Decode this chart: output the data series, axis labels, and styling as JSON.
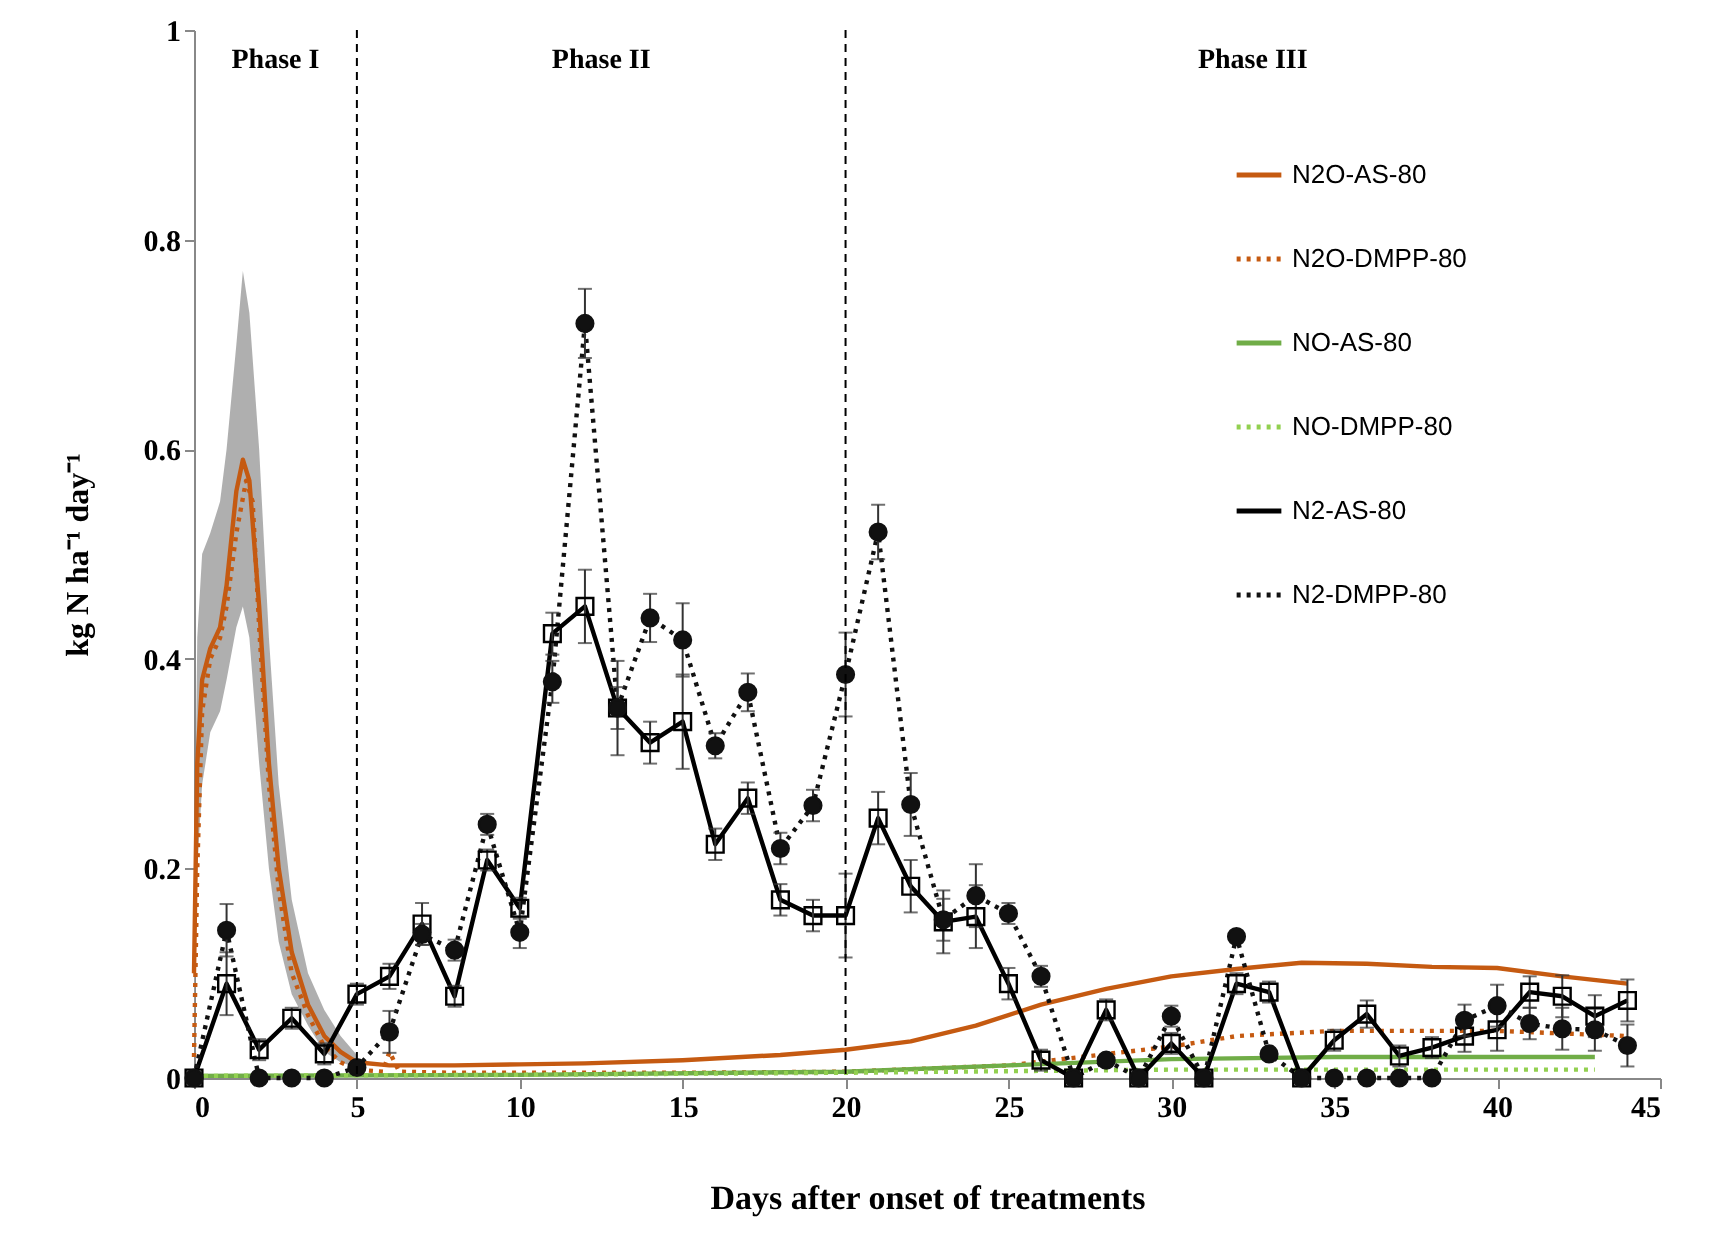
{
  "chart_data": {
    "type": "line",
    "xlabel": "Days after onset of treatments",
    "ylabel": "kg N ha⁻¹ day⁻¹",
    "xlim": [
      0,
      45
    ],
    "xticks": [
      0,
      5,
      10,
      15,
      20,
      25,
      30,
      35,
      40,
      45
    ],
    "ylim": [
      0,
      1
    ],
    "yticks": [
      0,
      0.2,
      0.4,
      0.6,
      0.8,
      1
    ],
    "grid": false,
    "legend": "top right",
    "ref_lines": [
      {
        "axis": "x",
        "value": 5,
        "line_style": "dashed",
        "color": "#000000"
      },
      {
        "axis": "x",
        "value": 20,
        "line_style": "dashed",
        "color": "#000000"
      }
    ],
    "annotations": [
      "Phase I",
      "Phase II",
      "Phase III"
    ],
    "series": [
      {
        "name": "N2O-AS-80",
        "color": "#c55a11",
        "line_style": "solid",
        "marker": "none",
        "x": [
          0,
          0.1,
          0.25,
          0.5,
          0.8,
          1.0,
          1.3,
          1.5,
          1.7,
          2.0,
          2.3,
          2.6,
          3.0,
          3.5,
          4,
          4.5,
          5,
          6,
          8,
          10,
          12,
          15,
          18,
          20,
          22,
          24,
          26,
          28,
          30,
          32,
          34,
          36,
          38,
          40,
          42,
          44
        ],
        "values": [
          0.1,
          0.3,
          0.38,
          0.41,
          0.43,
          0.47,
          0.56,
          0.59,
          0.57,
          0.45,
          0.3,
          0.2,
          0.12,
          0.07,
          0.04,
          0.025,
          0.015,
          0.012,
          0.012,
          0.013,
          0.014,
          0.017,
          0.022,
          0.027,
          0.035,
          0.05,
          0.07,
          0.085,
          0.097,
          0.104,
          0.11,
          0.109,
          0.106,
          0.105,
          0.097,
          0.09
        ],
        "lower": [
          0.05,
          0.2,
          0.28,
          0.33,
          0.35,
          0.38,
          0.43,
          0.45,
          0.42,
          0.3,
          0.2,
          0.13,
          0.08,
          0.05,
          0.025,
          0.015,
          0.01,
          null,
          null,
          null,
          null,
          null,
          null,
          null,
          null,
          null,
          null,
          null,
          null,
          null,
          null,
          null,
          null,
          null,
          null,
          null
        ],
        "upper": [
          0.15,
          0.42,
          0.5,
          0.52,
          0.55,
          0.6,
          0.7,
          0.77,
          0.73,
          0.6,
          0.42,
          0.28,
          0.17,
          0.1,
          0.065,
          0.04,
          0.022,
          null,
          null,
          null,
          null,
          null,
          null,
          null,
          null,
          null,
          null,
          null,
          null,
          null,
          null,
          null,
          null,
          null,
          null,
          null
        ]
      },
      {
        "name": "N2O-DMPP-80",
        "color": "#c55a11",
        "line_style": "dotted",
        "marker": "none",
        "x": [
          0,
          0.1,
          0.25,
          0.5,
          0.8,
          1.0,
          1.3,
          1.6,
          1.8,
          2.0,
          2.3,
          2.6,
          3.0,
          3.5,
          4,
          4.5,
          5,
          5.8,
          6,
          6.3,
          8,
          10,
          15,
          20,
          25,
          30,
          32,
          35,
          40,
          44
        ],
        "values": [
          0.02,
          0.2,
          0.35,
          0.4,
          0.42,
          0.45,
          0.52,
          0.57,
          0.55,
          0.43,
          0.28,
          0.18,
          0.1,
          0.06,
          0.03,
          0.015,
          0.008,
          0.006,
          0.025,
          0.006,
          0.005,
          0.005,
          0.005,
          0.006,
          0.012,
          0.03,
          0.04,
          0.045,
          0.045,
          0.04
        ]
      },
      {
        "name": "NO-AS-80",
        "color": "#70ad47",
        "line_style": "solid",
        "marker": "none",
        "x": [
          0,
          10,
          20,
          25,
          30,
          35,
          43
        ],
        "values": [
          0.002,
          0.003,
          0.006,
          0.012,
          0.018,
          0.02,
          0.02
        ]
      },
      {
        "name": "NO-DMPP-80",
        "color": "#92d050",
        "line_style": "dotted",
        "marker": "none",
        "x": [
          0,
          10,
          20,
          30,
          43
        ],
        "values": [
          0.002,
          0.003,
          0.005,
          0.008,
          0.008
        ]
      },
      {
        "name": "N2-AS-80",
        "color": "#000000",
        "line_style": "solid",
        "marker": "square",
        "x": [
          0,
          1,
          2,
          3,
          4,
          5,
          6,
          7,
          8,
          9,
          10,
          11,
          12,
          13,
          14,
          15,
          16,
          17,
          18,
          19,
          20,
          21,
          22,
          23,
          24,
          25,
          26,
          27,
          28,
          29,
          30,
          31,
          32,
          33,
          34,
          35,
          36,
          37,
          38,
          39,
          40,
          41,
          42,
          43,
          44
        ],
        "values": [
          0,
          0.09,
          0.027,
          0.057,
          0.023,
          0.08,
          0.097,
          0.147,
          0.078,
          0.208,
          0.162,
          0.424,
          0.45,
          0.353,
          0.32,
          0.34,
          0.223,
          0.267,
          0.17,
          0.155,
          0.155,
          0.248,
          0.183,
          0.149,
          0.154,
          0.09,
          0.017,
          0,
          0.065,
          0,
          0.033,
          0,
          0.09,
          0.082,
          0,
          0.036,
          0.061,
          0.021,
          0.029,
          0.04,
          0.046,
          0.082,
          0.078,
          0.059,
          0.074
        ],
        "errors": [
          null,
          0.03,
          0.01,
          0.01,
          0.01,
          0.01,
          0.012,
          0.02,
          0.01,
          0.01,
          0.01,
          0.02,
          0.035,
          0.045,
          0.02,
          0.045,
          0.015,
          0.015,
          0.015,
          0.015,
          0.04,
          0.025,
          0.025,
          0.03,
          0.03,
          0.015,
          0.01,
          null,
          0.01,
          null,
          0.01,
          null,
          0.01,
          0.01,
          null,
          0.01,
          0.013,
          0.01,
          0.01,
          0.015,
          0.02,
          0.015,
          0.02,
          0.02,
          0.02
        ]
      },
      {
        "name": "N2-DMPP-80",
        "color": "#111111",
        "line_style": "dotted",
        "marker": "circle",
        "x": [
          0,
          1,
          2,
          3,
          4,
          5,
          6,
          7,
          8,
          9,
          10,
          11,
          12,
          13,
          14,
          15,
          16,
          17,
          18,
          19,
          20,
          21,
          22,
          23,
          24,
          25,
          26,
          27,
          28,
          29,
          30,
          31,
          32,
          33,
          34,
          35,
          36,
          37,
          38,
          39,
          40,
          41,
          42,
          43,
          44
        ],
        "values": [
          0,
          0.141,
          0,
          0,
          0,
          0.01,
          0.044,
          0.137,
          0.122,
          0.242,
          0.139,
          0.378,
          0.72,
          0.353,
          0.439,
          0.418,
          0.317,
          0.368,
          0.219,
          0.26,
          0.385,
          0.521,
          0.261,
          0.151,
          0.174,
          0.157,
          0.097,
          0,
          0.017,
          0,
          0.059,
          0,
          0.135,
          0.023,
          0,
          0,
          0,
          0,
          0,
          0.055,
          0.069,
          0.052,
          0.047,
          0.046,
          0.031
        ],
        "errors": [
          null,
          0.025,
          null,
          null,
          null,
          null,
          0.02,
          0.01,
          0.01,
          0.01,
          0.015,
          0.02,
          0.033,
          0.02,
          0.023,
          0.035,
          0.012,
          0.018,
          0.015,
          0.015,
          0.04,
          0.026,
          0.03,
          0.02,
          0.03,
          0.01,
          0.01,
          null,
          null,
          null,
          0.01,
          null,
          null,
          null,
          null,
          null,
          null,
          null,
          null,
          0.015,
          0.02,
          0.015,
          0.02,
          0.02,
          0.02
        ]
      }
    ]
  }
}
